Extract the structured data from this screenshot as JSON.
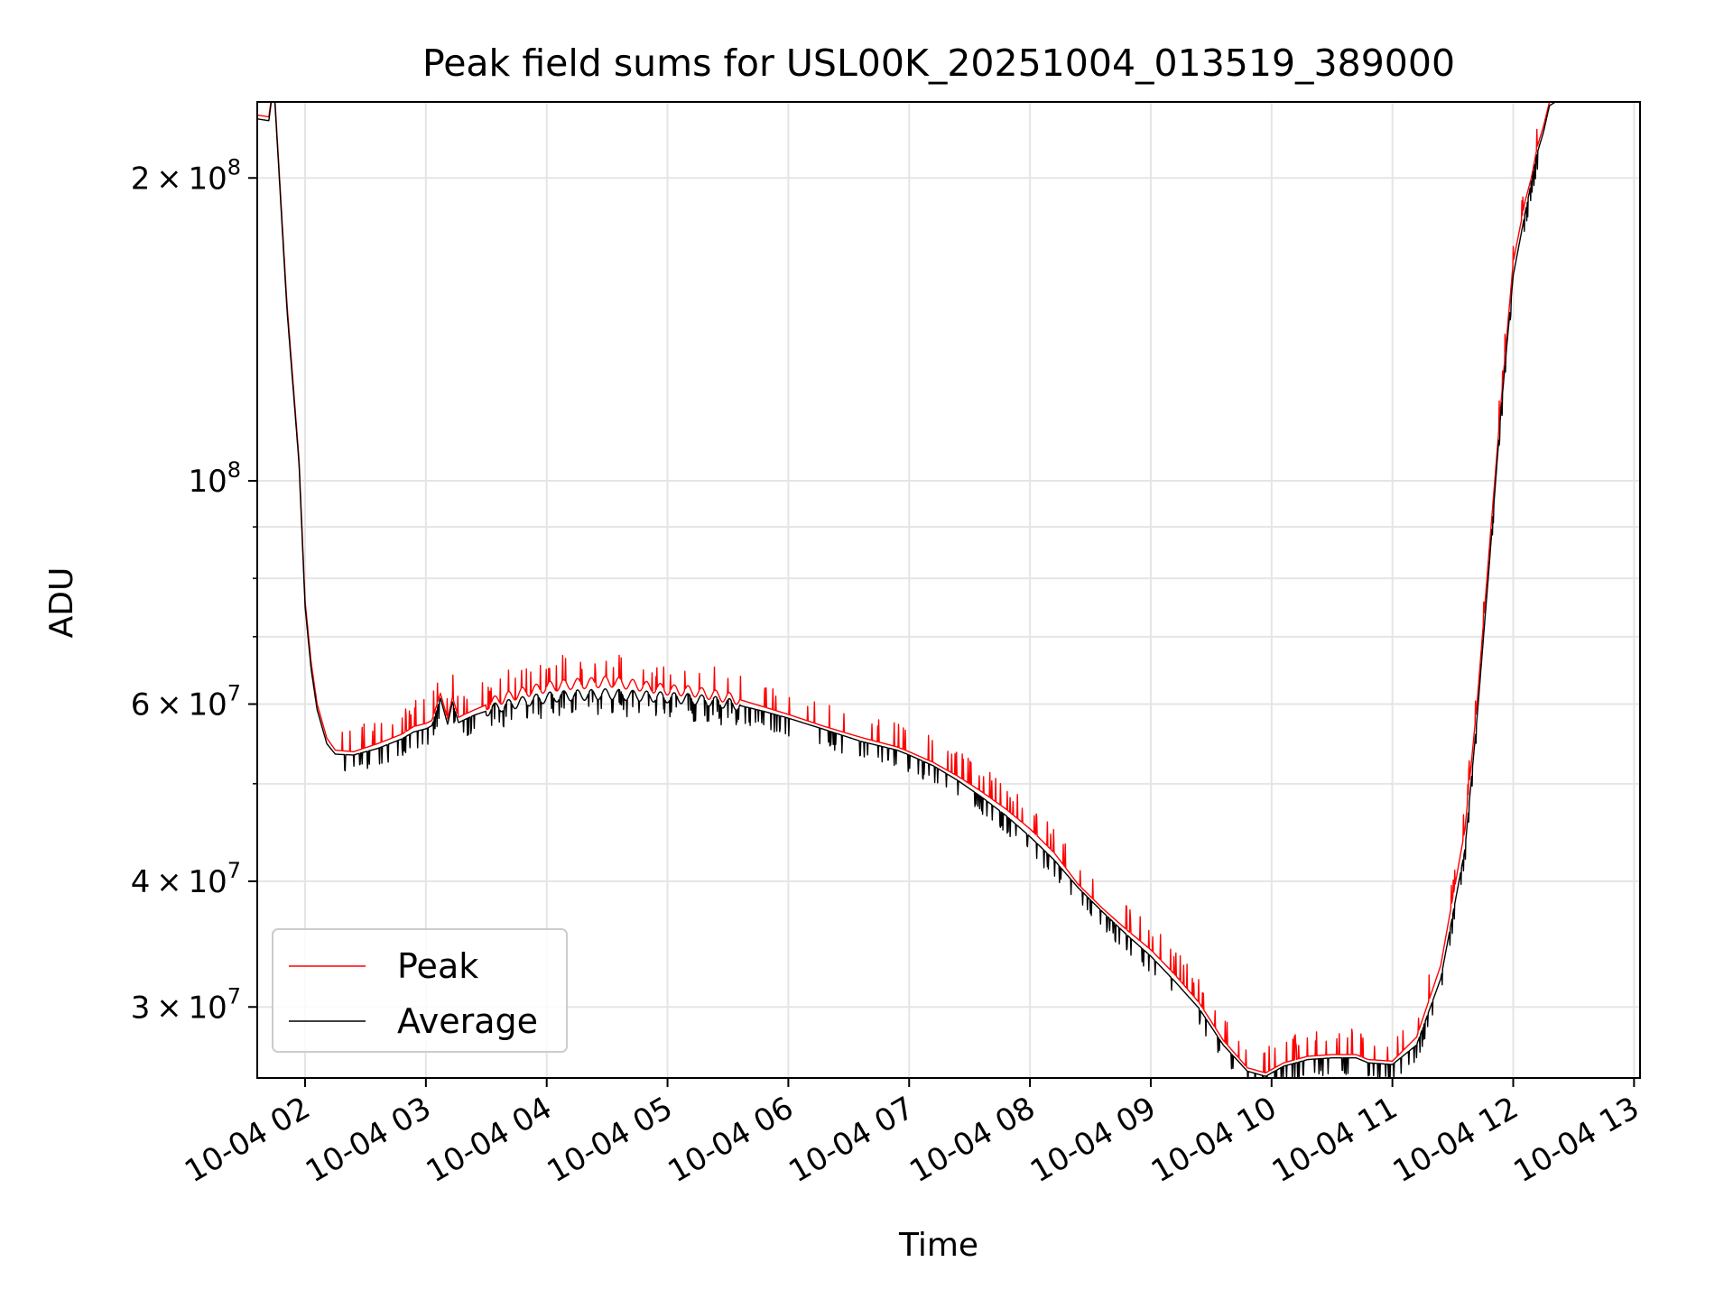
{
  "chart_data": {
    "type": "line",
    "title": "Peak field sums for USL00K_20251004_013519_389000",
    "xlabel": "Time",
    "ylabel": "ADU",
    "y_scale": "log",
    "ylim": [
      25500000,
      238000000
    ],
    "xlim_hours": [
      1.6,
      13.0
    ],
    "grid": true,
    "legend_position": "lower-left",
    "x_ticks": [
      {
        "hour": 2,
        "label": "10-04 02"
      },
      {
        "hour": 3,
        "label": "10-04 03"
      },
      {
        "hour": 4,
        "label": "10-04 04"
      },
      {
        "hour": 5,
        "label": "10-04 05"
      },
      {
        "hour": 6,
        "label": "10-04 06"
      },
      {
        "hour": 7,
        "label": "10-04 07"
      },
      {
        "hour": 8,
        "label": "10-04 08"
      },
      {
        "hour": 9,
        "label": "10-04 09"
      },
      {
        "hour": 10,
        "label": "10-04 10"
      },
      {
        "hour": 11,
        "label": "10-04 11"
      },
      {
        "hour": 12,
        "label": "10-04 12"
      },
      {
        "hour": 13,
        "label": "10-04 13"
      }
    ],
    "y_ticks": [
      {
        "value": 30000000,
        "mant": "3",
        "exp": "7"
      },
      {
        "value": 40000000,
        "mant": "4",
        "exp": "7"
      },
      {
        "value": 60000000,
        "mant": "6",
        "exp": "7"
      },
      {
        "value": 100000000,
        "mant": "",
        "exp": "8"
      },
      {
        "value": 200000000,
        "mant": "2",
        "exp": "8"
      }
    ],
    "y_minor": [
      50000000,
      70000000,
      80000000,
      90000000
    ],
    "series": [
      {
        "name": "Peak",
        "color": "#ff0000",
        "x_hours": [
          1.6,
          1.7,
          1.72,
          1.75,
          1.85,
          1.95,
          2.0,
          2.05,
          2.1,
          2.18,
          2.25,
          2.4,
          2.6,
          2.8,
          2.9,
          3.0,
          3.05,
          3.12,
          3.18,
          3.22,
          3.27,
          3.32,
          3.4,
          3.6,
          3.8,
          4.0,
          4.2,
          4.4,
          4.5,
          4.6,
          4.8,
          5.0,
          5.2,
          5.4,
          5.6,
          5.8,
          6.0,
          6.3,
          6.6,
          6.9,
          7.0,
          7.2,
          7.4,
          7.6,
          7.8,
          8.0,
          8.2,
          8.4,
          8.6,
          8.8,
          9.0,
          9.2,
          9.4,
          9.6,
          9.8,
          9.95,
          10.1,
          10.3,
          10.5,
          10.7,
          10.8,
          11.0,
          11.2,
          11.4,
          11.6,
          11.7,
          11.8,
          11.9,
          12.0,
          12.1,
          12.15,
          12.2,
          12.25,
          12.3,
          12.35,
          12.4,
          12.45,
          12.5,
          12.55,
          12.6,
          12.65,
          12.7,
          12.75,
          12.8,
          12.85,
          12.9
        ],
        "values": [
          231000000,
          230000000,
          240000000,
          240000000,
          150000000,
          105000000,
          76000000,
          66000000,
          60000000,
          55500000,
          54000000,
          53800000,
          54800000,
          56000000,
          57000000,
          57400000,
          57800000,
          61500000,
          58000000,
          61000000,
          58200000,
          58600000,
          59200000,
          60600000,
          61600000,
          62400000,
          62800000,
          63000000,
          63200000,
          63000000,
          62500000,
          62000000,
          61800000,
          61200000,
          60600000,
          59600000,
          58600000,
          57000000,
          55600000,
          54400000,
          53800000,
          52500000,
          50900000,
          49100000,
          47200000,
          45100000,
          42700000,
          39700000,
          37600000,
          35800000,
          34200000,
          32300000,
          30300000,
          27800000,
          26100000,
          25800000,
          26400000,
          26800000,
          26900000,
          26900000,
          26600000,
          26500000,
          28000000,
          33000000,
          45000000,
          60000000,
          85000000,
          120000000,
          165000000,
          190000000,
          200000000,
          215000000,
          225000000,
          238000000,
          238000000,
          238000000,
          238000000,
          238000000,
          238000000,
          238000000,
          238000000,
          238000000,
          238000000,
          238000000,
          238000000,
          238000000
        ]
      },
      {
        "name": "Average",
        "color": "#000000",
        "x_hours": [
          1.6,
          1.7,
          1.72,
          1.75,
          1.85,
          1.95,
          2.0,
          2.05,
          2.1,
          2.18,
          2.25,
          2.4,
          2.6,
          2.8,
          2.9,
          3.0,
          3.05,
          3.12,
          3.18,
          3.22,
          3.27,
          3.32,
          3.4,
          3.6,
          3.8,
          4.0,
          4.2,
          4.4,
          4.5,
          4.6,
          4.8,
          5.0,
          5.2,
          5.4,
          5.6,
          5.8,
          6.0,
          6.3,
          6.6,
          6.9,
          7.0,
          7.2,
          7.4,
          7.6,
          7.8,
          8.0,
          8.2,
          8.4,
          8.6,
          8.8,
          9.0,
          9.2,
          9.4,
          9.6,
          9.8,
          9.95,
          10.1,
          10.3,
          10.5,
          10.7,
          10.8,
          11.0,
          11.2,
          11.4,
          11.6,
          11.7,
          11.8,
          11.9,
          12.0,
          12.1,
          12.15,
          12.2,
          12.25,
          12.3,
          12.35,
          12.4,
          12.45,
          12.5,
          12.55,
          12.6,
          12.65,
          12.7,
          12.75,
          12.8,
          12.85,
          12.9
        ],
        "values": [
          229000000,
          228000000,
          238000000,
          238000000,
          148000000,
          104000000,
          75000000,
          65000000,
          59200000,
          54800000,
          53500000,
          53400000,
          54200000,
          55400000,
          56300000,
          56700000,
          57100000,
          60800000,
          57300000,
          60300000,
          57500000,
          57900000,
          58500000,
          59600000,
          60300000,
          60900000,
          61200000,
          61300000,
          61400000,
          61300000,
          61100000,
          60900000,
          60700000,
          60300000,
          59800000,
          59000000,
          58100000,
          56600000,
          55100000,
          54000000,
          53400000,
          52100000,
          50400000,
          48500000,
          46500000,
          44300000,
          42000000,
          39400000,
          37300000,
          35400000,
          33700000,
          31800000,
          29900000,
          27500000,
          25900000,
          25600000,
          26200000,
          26600000,
          26700000,
          26700000,
          26400000,
          26300000,
          27500000,
          32000000,
          43000000,
          58000000,
          82000000,
          118000000,
          160000000,
          185000000,
          198000000,
          212000000,
          222000000,
          236000000,
          238000000,
          238000000,
          238000000,
          238000000,
          238000000,
          238000000,
          238000000,
          238000000,
          238000000,
          238000000,
          238000000,
          238000000
        ]
      }
    ]
  }
}
